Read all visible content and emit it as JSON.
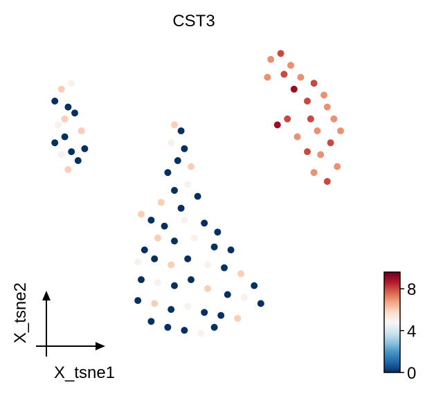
{
  "chart_data": {
    "type": "scatter",
    "title": "CST3",
    "xlabel": "X_tsne1",
    "ylabel": "X_tsne2",
    "colormap": "RdBu_r",
    "clim": [
      0,
      9.6
    ],
    "cticks": [
      0,
      4,
      8
    ],
    "xlim": [
      0,
      100
    ],
    "ylim": [
      0,
      100
    ],
    "x": [
      4,
      6,
      8,
      5,
      10,
      7,
      12,
      9,
      6,
      11,
      8,
      13,
      4,
      9,
      7,
      40,
      42,
      39,
      43,
      41,
      45,
      38,
      44,
      40,
      47,
      36,
      42,
      30,
      33,
      37,
      43,
      49,
      53,
      35,
      40,
      46,
      52,
      57,
      31,
      29,
      34,
      39,
      44,
      50,
      55,
      60,
      64,
      30,
      35,
      40,
      45,
      50,
      56,
      61,
      66,
      29,
      34,
      39,
      44,
      49,
      54,
      59,
      38,
      43,
      48,
      33,
      52,
      69,
      72,
      75,
      68,
      73,
      78,
      82,
      76,
      85,
      80,
      86,
      71,
      74,
      81,
      88,
      83,
      87,
      84,
      89,
      86,
      77,
      80,
      90,
      82
    ],
    "y": [
      80,
      84,
      78,
      72,
      76,
      68,
      70,
      63,
      62,
      60,
      57,
      64,
      66,
      86,
      74,
      72,
      70,
      66,
      64,
      60,
      58,
      56,
      52,
      50,
      48,
      46,
      44,
      42,
      40,
      38,
      40,
      39,
      36,
      34,
      33,
      34,
      31,
      30,
      30,
      26,
      27,
      25,
      27,
      25,
      24,
      22,
      18,
      20,
      19,
      18,
      20,
      17,
      15,
      14,
      12,
      13,
      12,
      10,
      11,
      9,
      8,
      7,
      4,
      3,
      2,
      6,
      4,
      94,
      96,
      92,
      88,
      89,
      88,
      86,
      84,
      82,
      80,
      78,
      72,
      74,
      74,
      74,
      70,
      66,
      62,
      58,
      53,
      68,
      63,
      70,
      56
    ],
    "values": [
      0,
      6,
      0,
      5,
      0,
      0,
      6,
      0,
      5,
      0,
      6,
      0,
      0,
      5,
      6,
      6,
      0,
      5,
      0,
      0,
      6,
      0,
      5,
      0,
      0,
      6,
      0,
      6,
      0,
      0,
      5,
      0,
      0,
      6,
      0,
      5,
      0,
      0,
      0,
      5,
      0,
      6,
      0,
      5,
      0,
      6,
      0,
      0,
      5,
      0,
      0,
      6,
      0,
      5,
      0,
      0,
      6,
      0,
      5,
      0,
      0,
      6,
      0,
      0,
      5,
      0,
      0,
      7,
      8,
      7,
      7,
      8,
      7,
      8,
      9,
      7,
      8,
      7,
      9,
      8,
      8,
      7,
      7,
      8,
      7,
      7,
      8,
      7,
      8,
      7,
      7
    ]
  }
}
